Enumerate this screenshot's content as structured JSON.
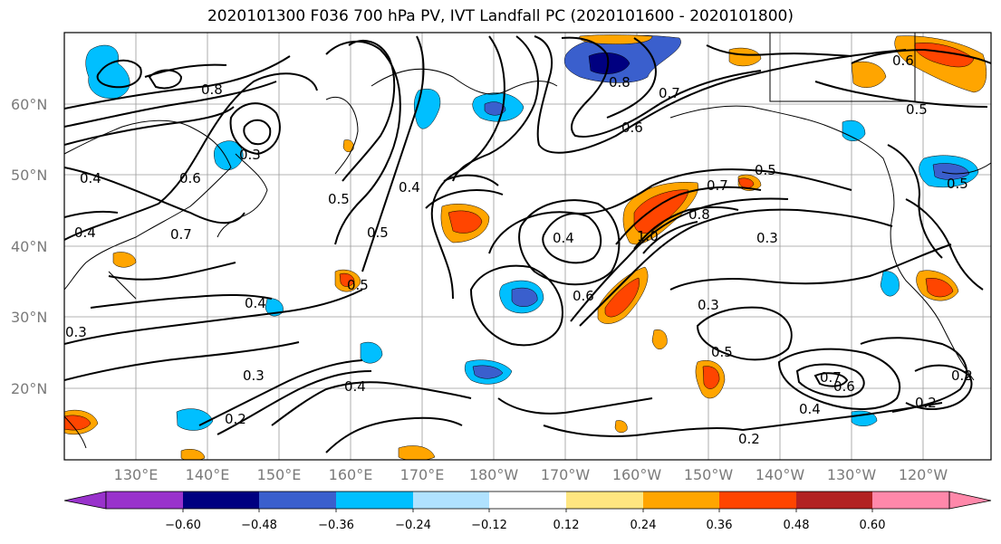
{
  "title": "2020101300 F036 700 hPa PV, IVT Landfall PC (2020101600 - 2020101800)",
  "lat_labels": [
    "60°N",
    "50°N",
    "40°N",
    "30°N",
    "20°N"
  ],
  "lon_labels": [
    "130°E",
    "140°E",
    "150°E",
    "160°E",
    "170°E",
    "180°W",
    "170°W",
    "160°W",
    "150°W",
    "140°W",
    "130°W",
    "120°W"
  ],
  "colorbar": {
    "ticks": [
      "−0.60",
      "−0.48",
      "−0.36",
      "−0.24",
      "−0.12",
      "0.12",
      "0.24",
      "0.36",
      "0.48",
      "0.60"
    ],
    "colors": [
      "#9932CC",
      "#000080",
      "#3A5FCD",
      "#00BFFF",
      "#B0E2FF",
      "#FFFFFF",
      "#FFE680",
      "#FFA500",
      "#FF4500",
      "#B22222",
      "#FF88AA"
    ]
  },
  "contour_labels": [
    {
      "text": "0.4"
    },
    {
      "text": "0.7"
    },
    {
      "text": "0.6"
    },
    {
      "text": "0.4"
    },
    {
      "text": "0.3"
    },
    {
      "text": "0.8"
    },
    {
      "text": "0.5"
    },
    {
      "text": "0.5"
    },
    {
      "text": "0.5"
    },
    {
      "text": "0.4"
    },
    {
      "text": "0.4"
    },
    {
      "text": "0.3"
    },
    {
      "text": "0.4"
    },
    {
      "text": "0.2"
    },
    {
      "text": "0.3"
    },
    {
      "text": "0.4"
    },
    {
      "text": "0.6"
    },
    {
      "text": "0.7"
    },
    {
      "text": "0.8"
    },
    {
      "text": "0.6"
    },
    {
      "text": "0.5"
    },
    {
      "text": "0.7"
    },
    {
      "text": "0.8"
    },
    {
      "text": "1.0"
    },
    {
      "text": "0.3"
    },
    {
      "text": "0.3"
    },
    {
      "text": "0.5"
    },
    {
      "text": "0.2"
    },
    {
      "text": "0.7"
    },
    {
      "text": "0.6"
    },
    {
      "text": "0.4"
    },
    {
      "text": "0.2"
    },
    {
      "text": "0.5"
    },
    {
      "text": "0.5"
    },
    {
      "text": "0.6"
    },
    {
      "text": "0.2"
    }
  ]
}
